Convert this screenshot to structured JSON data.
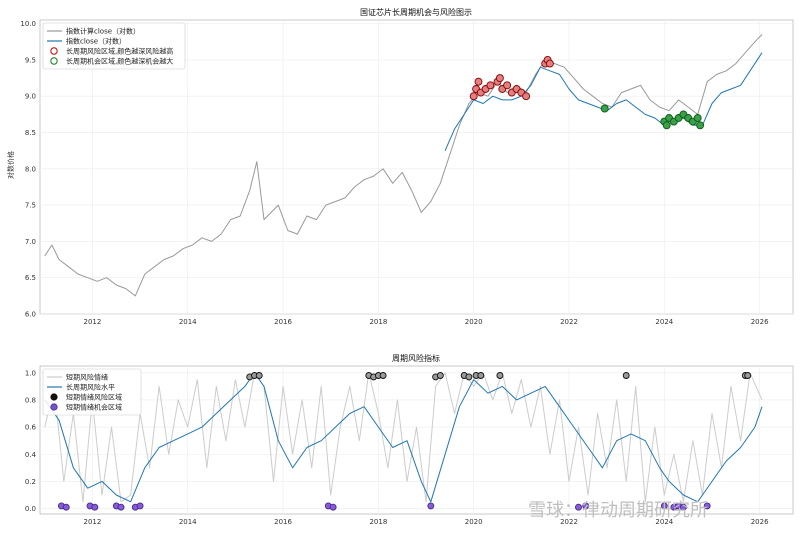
{
  "chart_data": [
    {
      "type": "line",
      "title": "国证芯片长周期机会与风险图示",
      "ylabel": "对数价格",
      "xlim": [
        2010.9,
        2026.7
      ],
      "ylim": [
        6.0,
        10.05
      ],
      "xticks": [
        2012,
        2014,
        2016,
        2018,
        2020,
        2022,
        2024,
        2026
      ],
      "yticks": [
        "6.0",
        "6.5",
        "7.0",
        "7.5",
        "8.0",
        "8.5",
        "9.0",
        "9.5",
        "10.0"
      ],
      "grid": true,
      "legend_position": "top-left",
      "legend": [
        "指数计算close（对数）",
        "指数close（对数）",
        "长周期风险区域,颜色越深风险越高",
        "长周期机会区域,颜色越深机会越大"
      ],
      "series": [
        {
          "name": "指数计算close（对数）",
          "color": "#999999",
          "x": [
            2011.0,
            2011.15,
            2011.3,
            2011.5,
            2011.7,
            2011.9,
            2012.1,
            2012.3,
            2012.5,
            2012.7,
            2012.9,
            2013.1,
            2013.3,
            2013.5,
            2013.7,
            2013.9,
            2014.1,
            2014.3,
            2014.5,
            2014.7,
            2014.9,
            2015.1,
            2015.3,
            2015.45,
            2015.6,
            2015.75,
            2015.9,
            2016.1,
            2016.3,
            2016.5,
            2016.7,
            2016.9,
            2017.1,
            2017.3,
            2017.5,
            2017.7,
            2017.9,
            2018.1,
            2018.3,
            2018.5,
            2018.7,
            2018.9,
            2019.1,
            2019.3,
            2019.5,
            2019.7,
            2019.9,
            2020.1,
            2020.3,
            2020.5,
            2020.7,
            2020.9,
            2021.1,
            2021.3,
            2021.5,
            2021.7,
            2021.9,
            2022.1,
            2022.3,
            2022.5,
            2022.7,
            2022.9,
            2023.1,
            2023.3,
            2023.5,
            2023.7,
            2023.9,
            2024.1,
            2024.3,
            2024.5,
            2024.7,
            2024.9,
            2025.1,
            2025.3,
            2025.5,
            2025.7,
            2025.9,
            2026.05
          ],
          "values": [
            6.8,
            6.95,
            6.75,
            6.65,
            6.55,
            6.5,
            6.45,
            6.5,
            6.4,
            6.35,
            6.25,
            6.55,
            6.65,
            6.75,
            6.8,
            6.9,
            6.95,
            7.05,
            7.0,
            7.1,
            7.3,
            7.35,
            7.7,
            8.1,
            7.3,
            7.4,
            7.5,
            7.15,
            7.1,
            7.35,
            7.3,
            7.5,
            7.55,
            7.6,
            7.75,
            7.85,
            7.9,
            8.0,
            7.8,
            7.95,
            7.7,
            7.4,
            7.55,
            7.8,
            8.2,
            8.6,
            8.9,
            9.05,
            9.0,
            9.2,
            9.05,
            9.15,
            9.05,
            9.3,
            9.5,
            9.45,
            9.4,
            9.25,
            9.1,
            9.0,
            8.9,
            8.85,
            9.05,
            9.1,
            9.15,
            8.95,
            8.85,
            8.8,
            8.95,
            8.85,
            8.75,
            9.2,
            9.3,
            9.35,
            9.45,
            9.6,
            9.75,
            9.85
          ]
        },
        {
          "name": "指数close（对数）",
          "color": "#1f77b4",
          "x": [
            2019.4,
            2019.6,
            2019.8,
            2020.0,
            2020.2,
            2020.4,
            2020.6,
            2020.8,
            2021.0,
            2021.2,
            2021.4,
            2021.6,
            2021.8,
            2022.0,
            2022.2,
            2022.4,
            2022.6,
            2022.8,
            2023.0,
            2023.2,
            2023.4,
            2023.6,
            2023.8,
            2024.0,
            2024.2,
            2024.4,
            2024.6,
            2024.8,
            2025.0,
            2025.2,
            2025.4,
            2025.6,
            2025.8,
            2026.05
          ],
          "values": [
            8.25,
            8.55,
            8.75,
            8.95,
            8.9,
            9.0,
            8.95,
            8.95,
            9.0,
            9.15,
            9.4,
            9.35,
            9.3,
            9.1,
            8.95,
            8.9,
            8.85,
            8.8,
            8.9,
            8.95,
            8.85,
            8.75,
            8.7,
            8.6,
            8.65,
            8.7,
            8.6,
            8.6,
            8.9,
            9.05,
            9.1,
            9.15,
            9.35,
            9.6
          ]
        }
      ],
      "risk_points": {
        "name": "长周期风险区域,颜色越深风险越高",
        "x": [
          2020.0,
          2020.05,
          2020.1,
          2020.15,
          2020.25,
          2020.35,
          2020.5,
          2020.55,
          2020.6,
          2020.7,
          2020.8,
          2020.9,
          2021.0,
          2021.1,
          2021.5,
          2021.55,
          2021.6
        ],
        "values": [
          9.0,
          9.1,
          9.2,
          9.05,
          9.1,
          9.15,
          9.2,
          9.25,
          9.1,
          9.15,
          9.05,
          9.1,
          9.05,
          9.0,
          9.45,
          9.5,
          9.45
        ]
      },
      "opportunity_points": {
        "name": "长周期机会区域,颜色越深机会越大",
        "x": [
          2022.75,
          2024.0,
          2024.05,
          2024.1,
          2024.2,
          2024.3,
          2024.4,
          2024.5,
          2024.6,
          2024.7,
          2024.75
        ],
        "values": [
          8.83,
          8.65,
          8.6,
          8.7,
          8.65,
          8.7,
          8.75,
          8.7,
          8.65,
          8.7,
          8.6
        ]
      }
    },
    {
      "type": "line",
      "title": "周期风险指标",
      "xlim": [
        2010.9,
        2026.7
      ],
      "ylim": [
        -0.04,
        1.05
      ],
      "xticks": [
        2012,
        2014,
        2016,
        2018,
        2020,
        2022,
        2024,
        2026
      ],
      "yticks": [
        "0.0",
        "0.2",
        "0.4",
        "0.6",
        "0.8",
        "1.0"
      ],
      "grid": true,
      "legend_position": "top-left",
      "legend": [
        "短期风险情绪",
        "长周期风险水平",
        "短期情绪风险区域",
        "短期情绪机会区域"
      ],
      "series": [
        {
          "name": "长周期风险水平",
          "color": "#1f77b4",
          "x": [
            2011.0,
            2011.3,
            2011.6,
            2011.9,
            2012.2,
            2012.5,
            2012.8,
            2013.1,
            2013.4,
            2013.7,
            2014.0,
            2014.3,
            2014.6,
            2014.9,
            2015.2,
            2015.4,
            2015.6,
            2015.9,
            2016.2,
            2016.5,
            2016.8,
            2017.1,
            2017.4,
            2017.7,
            2018.0,
            2018.3,
            2018.6,
            2018.9,
            2019.1,
            2019.4,
            2019.7,
            2020.0,
            2020.3,
            2020.6,
            2020.9,
            2021.2,
            2021.5,
            2021.8,
            2022.1,
            2022.4,
            2022.7,
            2023.0,
            2023.3,
            2023.6,
            2023.9,
            2024.1,
            2024.4,
            2024.7,
            2025.0,
            2025.3,
            2025.6,
            2025.9,
            2026.05
          ],
          "values": [
            0.8,
            0.65,
            0.3,
            0.15,
            0.2,
            0.1,
            0.05,
            0.3,
            0.45,
            0.5,
            0.55,
            0.6,
            0.7,
            0.8,
            0.9,
            1.0,
            0.9,
            0.5,
            0.3,
            0.45,
            0.5,
            0.6,
            0.7,
            0.75,
            0.6,
            0.45,
            0.5,
            0.2,
            0.05,
            0.4,
            0.75,
            0.95,
            0.85,
            0.9,
            0.8,
            0.85,
            0.9,
            0.75,
            0.6,
            0.45,
            0.3,
            0.5,
            0.55,
            0.5,
            0.3,
            0.2,
            0.1,
            0.05,
            0.2,
            0.35,
            0.45,
            0.6,
            0.75
          ]
        }
      ],
      "short_risk_band": {
        "name": "短期风险情绪",
        "color": "#cccccc",
        "x": [
          2011.0,
          2011.2,
          2011.4,
          2011.6,
          2011.8,
          2012.0,
          2012.2,
          2012.4,
          2012.6,
          2012.8,
          2013.0,
          2013.2,
          2013.4,
          2013.6,
          2013.8,
          2014.0,
          2014.2,
          2014.4,
          2014.6,
          2014.8,
          2015.0,
          2015.2,
          2015.4,
          2015.6,
          2015.8,
          2016.0,
          2016.2,
          2016.4,
          2016.6,
          2016.8,
          2017.0,
          2017.2,
          2017.4,
          2017.6,
          2017.8,
          2018.0,
          2018.2,
          2018.4,
          2018.6,
          2018.8,
          2019.0,
          2019.2,
          2019.4,
          2019.6,
          2019.8,
          2020.0,
          2020.2,
          2020.4,
          2020.6,
          2020.8,
          2021.0,
          2021.2,
          2021.4,
          2021.6,
          2021.8,
          2022.0,
          2022.2,
          2022.4,
          2022.6,
          2022.8,
          2023.0,
          2023.2,
          2023.4,
          2023.6,
          2023.8,
          2024.0,
          2024.2,
          2024.4,
          2024.6,
          2024.8,
          2025.0,
          2025.2,
          2025.4,
          2025.6,
          2025.8,
          2026.05
        ],
        "values": [
          0.6,
          0.9,
          0.2,
          0.7,
          0.05,
          0.8,
          0.1,
          0.6,
          0.05,
          0.1,
          0.7,
          0.3,
          0.9,
          0.4,
          0.8,
          0.6,
          0.95,
          0.3,
          0.9,
          0.5,
          0.95,
          0.6,
          1.0,
          0.9,
          0.2,
          0.9,
          0.4,
          0.8,
          0.3,
          0.9,
          0.1,
          0.6,
          0.9,
          0.5,
          1.0,
          0.7,
          0.3,
          0.8,
          0.2,
          0.6,
          0.05,
          0.9,
          1.0,
          0.7,
          1.0,
          0.9,
          1.0,
          0.8,
          1.0,
          0.7,
          0.95,
          0.6,
          0.9,
          0.4,
          0.8,
          0.2,
          0.6,
          0.1,
          0.7,
          0.3,
          0.8,
          0.2,
          0.9,
          0.05,
          0.6,
          0.1,
          0.4,
          0.05,
          0.5,
          0.1,
          0.7,
          0.3,
          0.9,
          0.5,
          1.0,
          0.8
        ]
      },
      "short_risk_points": {
        "name": "短期情绪风险区域",
        "x": [
          2015.3,
          2015.4,
          2015.5,
          2017.8,
          2017.9,
          2018.0,
          2018.1,
          2019.2,
          2019.3,
          2019.8,
          2019.9,
          2020.05,
          2020.15,
          2020.55,
          2023.2,
          2025.7,
          2025.75
        ],
        "values": [
          0.97,
          0.98,
          0.98,
          0.98,
          0.97,
          0.98,
          0.98,
          0.97,
          0.98,
          0.98,
          0.97,
          0.98,
          0.98,
          0.98,
          0.98,
          0.98,
          0.98
        ]
      },
      "short_opportunity_points": {
        "name": "短期情绪机会区域",
        "x": [
          2011.35,
          2011.45,
          2011.95,
          2012.05,
          2012.5,
          2012.6,
          2012.9,
          2013.0,
          2016.95,
          2017.05,
          2019.1,
          2022.2,
          2022.35,
          2024.0,
          2024.2,
          2024.3,
          2024.4,
          2024.9
        ],
        "values": [
          0.02,
          0.01,
          0.02,
          0.01,
          0.02,
          0.01,
          0.01,
          0.02,
          0.02,
          0.01,
          0.02,
          0.01,
          0.02,
          0.02,
          0.01,
          0.02,
          0.01,
          0.02
        ]
      }
    }
  ],
  "watermark": {
    "text": "雪球：律动周期研究所"
  }
}
